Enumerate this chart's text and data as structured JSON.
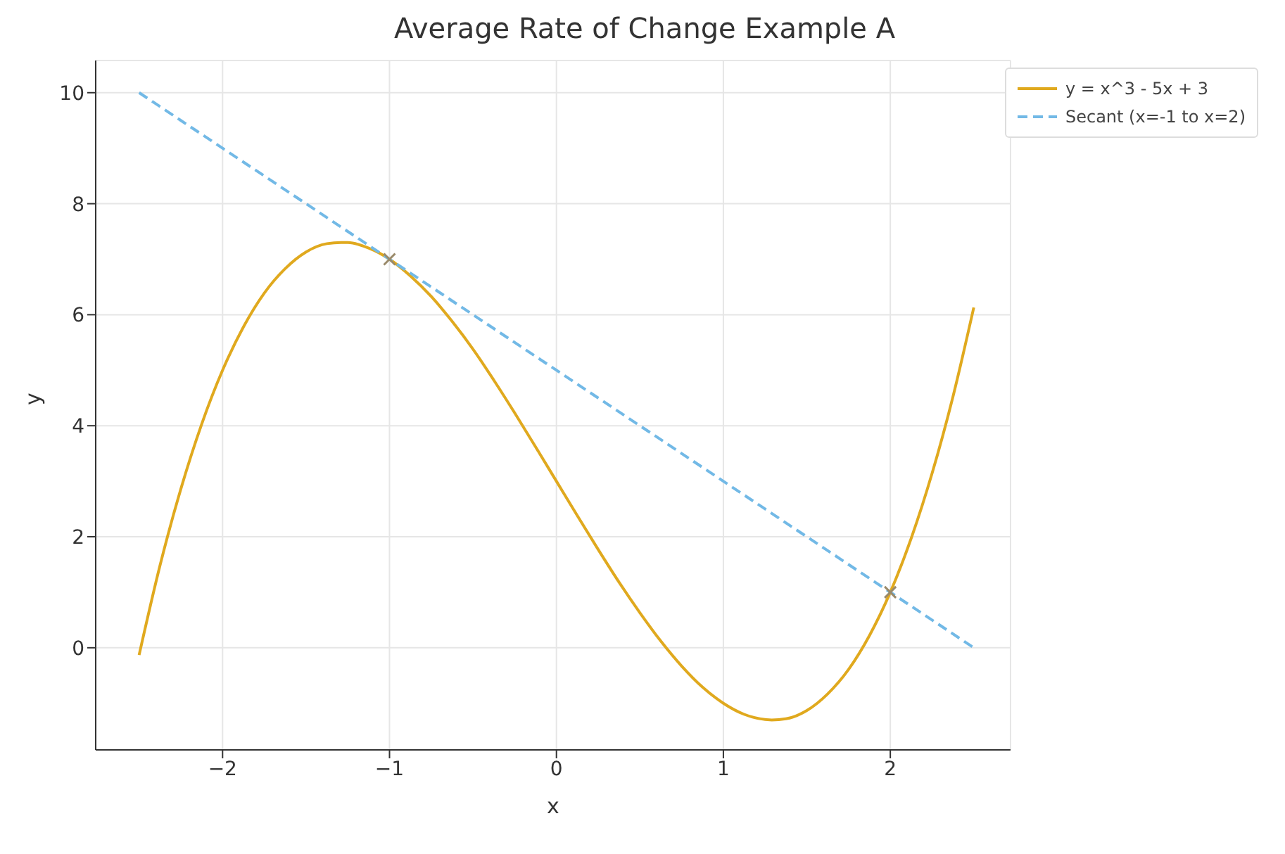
{
  "chart_data": {
    "type": "line",
    "title": "Average Rate of Change Example A",
    "xlabel": "x",
    "ylabel": "y",
    "xlim": [
      -2.76,
      2.72
    ],
    "ylim": [
      -1.84,
      10.58
    ],
    "xticks": [
      -2,
      -1,
      0,
      1,
      2
    ],
    "yticks": [
      0,
      2,
      4,
      6,
      8,
      10
    ],
    "grid": true,
    "legend": "top right",
    "series": [
      {
        "name": "y = x^3 - 5x + 3",
        "color": "#e0a91e",
        "line_style": "solid",
        "marker": "none",
        "x": [
          -2.5,
          -2.375,
          -2.25,
          -2.125,
          -2,
          -1.875,
          -1.75,
          -1.625,
          -1.5,
          -1.375,
          -1.29,
          -1.25,
          -1.125,
          -1,
          -0.875,
          -0.75,
          -0.625,
          -0.5,
          -0.375,
          -0.25,
          -0.125,
          0,
          0.125,
          0.25,
          0.375,
          0.5,
          0.625,
          0.75,
          0.875,
          1,
          1.125,
          1.29,
          1.375,
          1.5,
          1.625,
          1.75,
          1.875,
          2,
          2.125,
          2.25,
          2.375,
          2.5
        ],
        "values": [
          -0.13,
          1.48,
          2.86,
          4.03,
          5,
          5.78,
          6.39,
          6.83,
          7.13,
          7.28,
          7.3,
          7.3,
          7.2,
          7,
          6.7,
          6.33,
          5.88,
          5.38,
          4.82,
          4.23,
          3.62,
          3,
          2.38,
          1.77,
          1.18,
          0.63,
          0.12,
          -0.33,
          -0.71,
          -1,
          -1.2,
          -1.3,
          -1.28,
          -1.13,
          -0.83,
          -0.39,
          0.22,
          1,
          1.97,
          3.14,
          4.52,
          6.13
        ]
      },
      {
        "name": "Secant (x=-1 to x=2)",
        "color": "#72b9e6",
        "line_style": "dashed",
        "marker": "none",
        "x": [
          -2.5,
          2.5
        ],
        "values": [
          10,
          0
        ]
      },
      {
        "type": "scatter",
        "color": "#9a8a6a",
        "marker": "cross",
        "x": [
          -1,
          2
        ],
        "values": [
          7,
          1
        ]
      }
    ]
  }
}
